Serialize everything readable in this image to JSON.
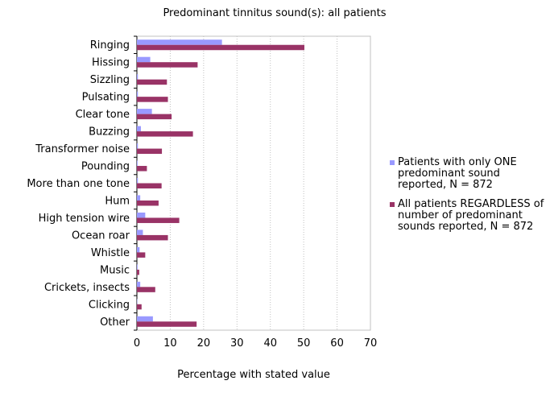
{
  "chart_data": {
    "type": "bar",
    "orientation": "horizontal",
    "title": "Predominant tinnitus sound(s): all patients",
    "xlabel": "Percentage with stated value",
    "ylabel": "",
    "xlim": [
      0,
      70
    ],
    "xticks": [
      0,
      10,
      20,
      30,
      40,
      50,
      60,
      70
    ],
    "grid": true,
    "legend_position": "right",
    "categories": [
      "Ringing",
      "Hissing",
      "Sizzling",
      "Pulsating",
      "Clear tone",
      "Buzzing",
      "Transformer noise",
      "Pounding",
      "More than one tone",
      "Hum",
      "High tension wire",
      "Ocean roar",
      "Whistle",
      "Music",
      "Crickets, insects",
      "Clicking",
      "Other"
    ],
    "series": [
      {
        "name": "Patients with only ONE predominant sound reported, N = 872",
        "legend_lines": [
          "Patients with only ONE",
          "predominant sound",
          "reported, N = 872"
        ],
        "color": "#9999ff",
        "values": [
          25.5,
          4,
          0.3,
          0.3,
          4.5,
          1.2,
          0.3,
          0.2,
          0.3,
          1,
          2.5,
          1.8,
          0.8,
          0.2,
          1,
          0.1,
          4.8
        ]
      },
      {
        "name": "All patients REGARDLESS of number of predominant sounds reported, N = 872",
        "legend_lines": [
          "All patients REGARDLESS of",
          "number of predominant",
          "sounds reported, N = 872"
        ],
        "color": "#993366",
        "values": [
          50.2,
          18.2,
          9,
          9.3,
          10.4,
          16.8,
          7.5,
          3,
          7.4,
          6.5,
          12.7,
          9.3,
          2.5,
          0.7,
          5.5,
          1.4,
          17.9
        ]
      }
    ]
  }
}
